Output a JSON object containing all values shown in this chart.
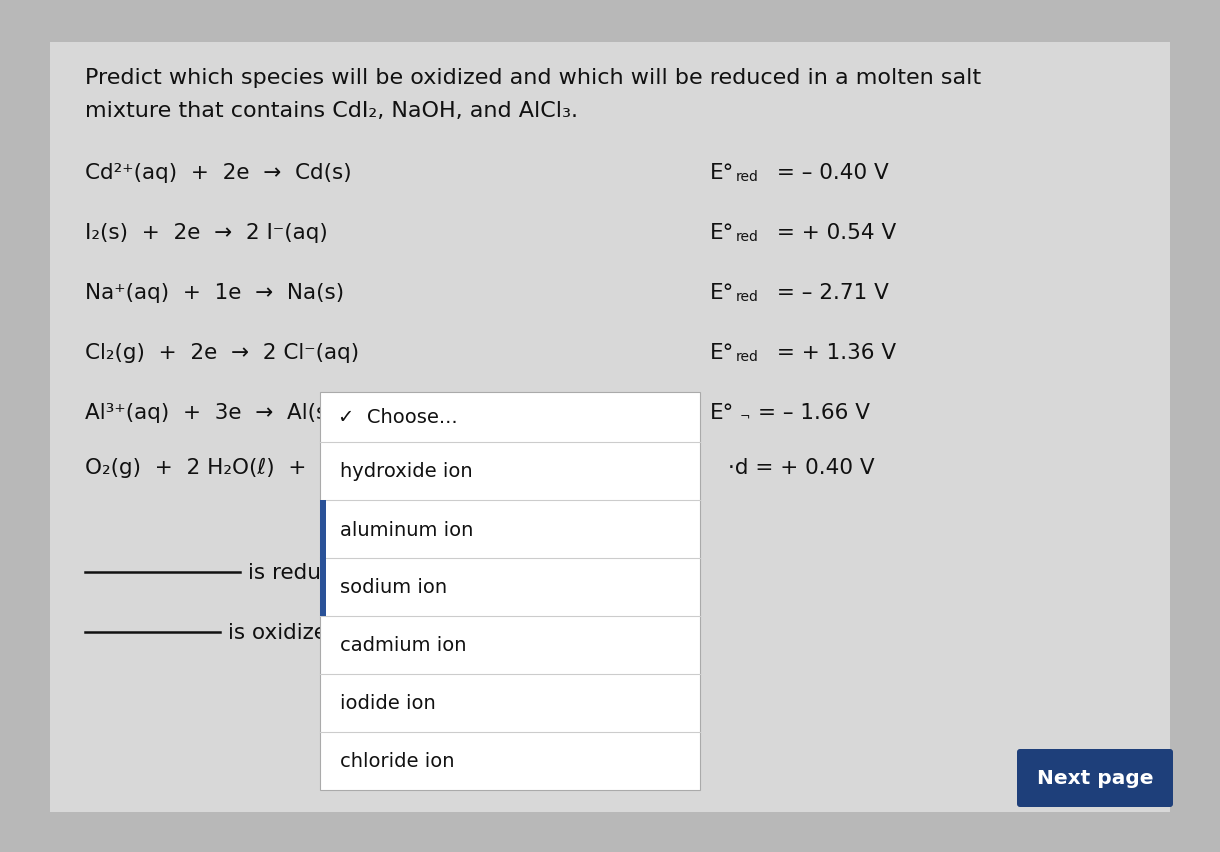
{
  "bg_outer": "#b8b8b8",
  "bg_card": "#d8d8d8",
  "bg_white": "#ffffff",
  "bg_button": "#1e3f7a",
  "text_color": "#111111",
  "title_line1": "Predict which species will be oxidized and which will be reduced in a molten salt",
  "title_line2": "mixture that contains CdI₂, NaOH, and AlCl₃.",
  "reactions": [
    "Cd²⁺(aq)  +  2e  →  Cd(s)",
    "I₂(s)  +  2e  →  2 I⁻(aq)",
    "Na⁺(aq)  +  1e  →  Na(s)",
    "Cl₂(g)  +  2e  →  2 Cl⁻(aq)",
    "Al³⁺(aq)  +  3e  →  Al(s)",
    "O₂(g)  +  2 H₂O(ℓ)  +  4e"
  ],
  "pot_values": [
    "= – 0.40 V",
    "= + 0.54 V",
    "= – 2.71 V",
    "= + 1.36 V",
    "= – 1.66 V",
    "= + 0.40 V"
  ],
  "blank1_label": "is reduced",
  "blank2_label": "is oxidized.",
  "dropdown_header": "✓  Choose...",
  "dropdown_items": [
    "hydroxide ion",
    "aluminum ion",
    "sodium ion",
    "cadmium ion",
    "iodide ion",
    "chloride ion"
  ],
  "next_button": "Next page"
}
